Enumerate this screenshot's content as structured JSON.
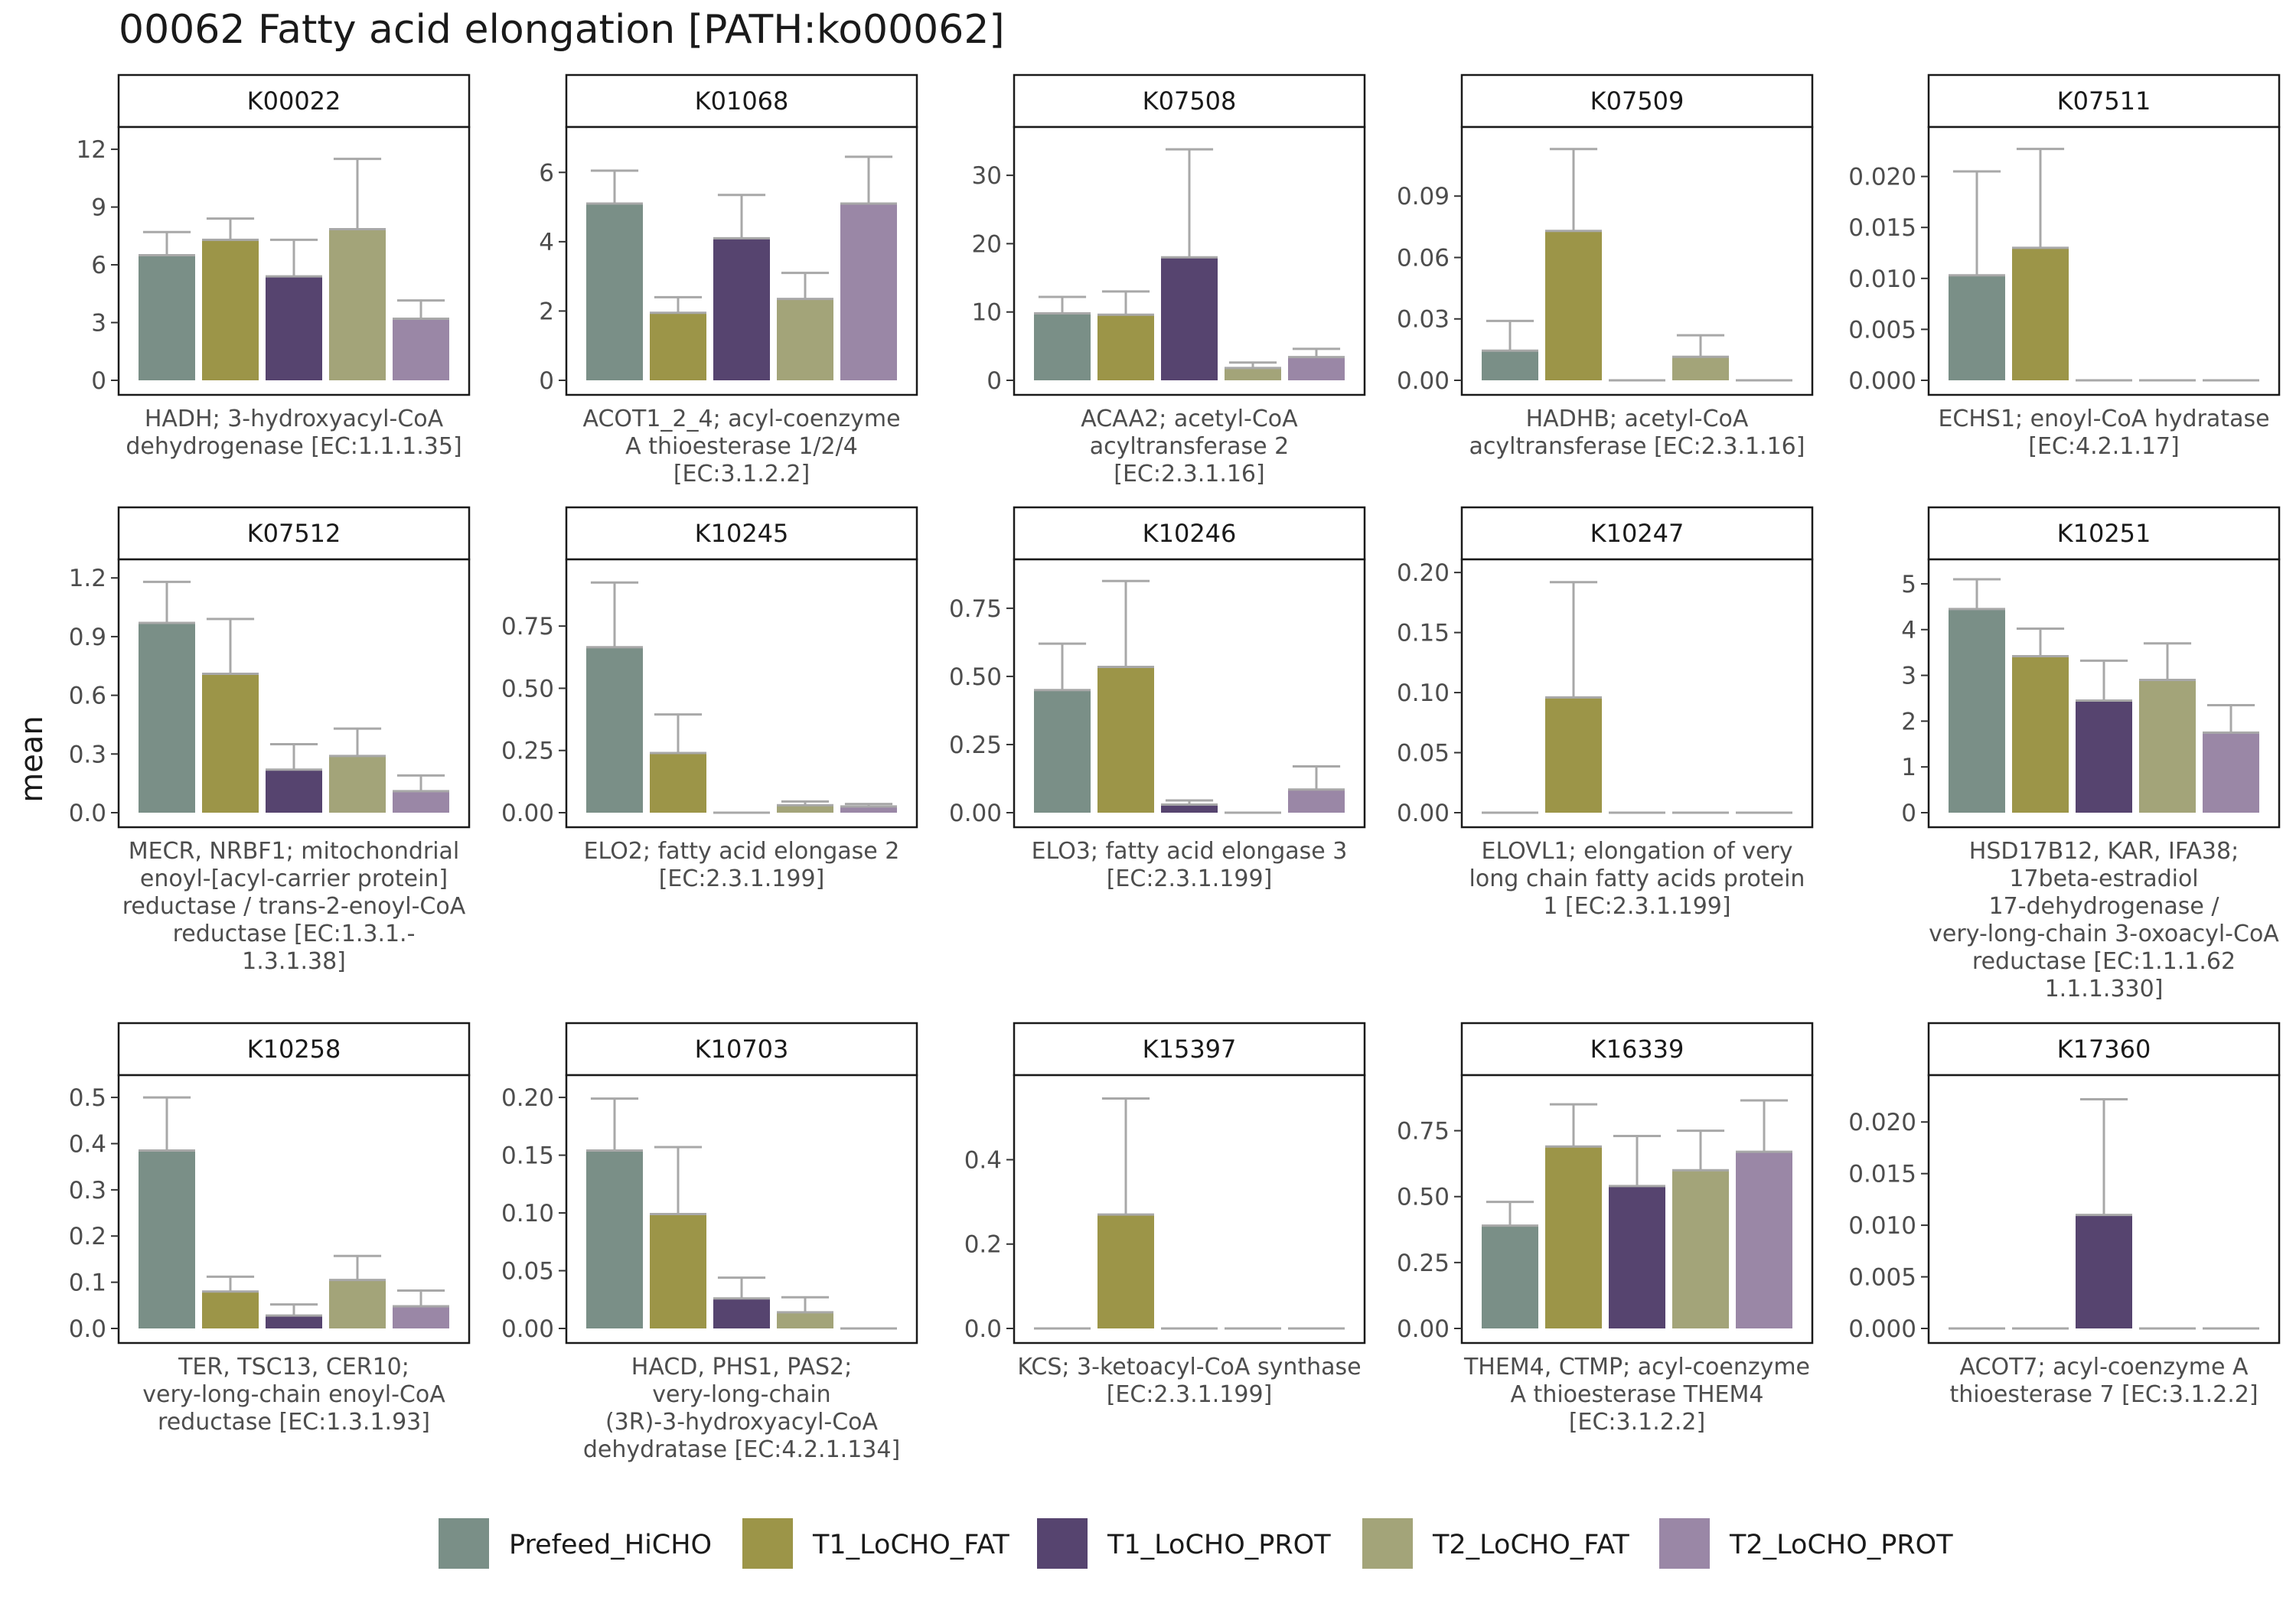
{
  "title": "00062 Fatty acid elongation [PATH:ko00062]",
  "ylabel": "mean",
  "legend": [
    {
      "name": "Prefeed_HiCHO",
      "color": "#7a8f87"
    },
    {
      "name": "T1_LoCHO_FAT",
      "color": "#9c9548"
    },
    {
      "name": "T1_LoCHO_PROT",
      "color": "#56446f"
    },
    {
      "name": "T2_LoCHO_FAT",
      "color": "#a3a479"
    },
    {
      "name": "T2_LoCHO_PROT",
      "color": "#9a87a6"
    }
  ],
  "error_bar_color": "#a8a8a8",
  "chart_data": [
    {
      "type": "bar",
      "title": "K00022",
      "caption": [
        "HADH; 3-hydroxyacyl-CoA",
        "dehydrogenase [EC:1.1.1.35]"
      ],
      "ylim": [
        0,
        12.6
      ],
      "yticks": [
        "0",
        "3",
        "6",
        "9",
        "12"
      ],
      "ytick_values": [
        0,
        3,
        6,
        9,
        12
      ],
      "series": [
        {
          "name": "Prefeed_HiCHO",
          "value": 6.5,
          "upper": 7.7
        },
        {
          "name": "T1_LoCHO_FAT",
          "value": 7.3,
          "upper": 8.4
        },
        {
          "name": "T1_LoCHO_PROT",
          "value": 5.4,
          "upper": 7.3
        },
        {
          "name": "T2_LoCHO_FAT",
          "value": 7.85,
          "upper": 11.5
        },
        {
          "name": "T2_LoCHO_PROT",
          "value": 3.2,
          "upper": 4.15
        }
      ]
    },
    {
      "type": "bar",
      "title": "K01068",
      "caption": [
        "ACOT1_2_4; acyl-coenzyme",
        "A thioesterase 1/2/4",
        "[EC:3.1.2.2]"
      ],
      "ylim": [
        0,
        7.0
      ],
      "yticks": [
        "0",
        "2",
        "4",
        "6"
      ],
      "ytick_values": [
        0,
        2,
        4,
        6
      ],
      "series": [
        {
          "name": "Prefeed_HiCHO",
          "value": 5.1,
          "upper": 6.05
        },
        {
          "name": "T1_LoCHO_FAT",
          "value": 1.95,
          "upper": 2.4
        },
        {
          "name": "T1_LoCHO_PROT",
          "value": 4.1,
          "upper": 5.35
        },
        {
          "name": "T2_LoCHO_FAT",
          "value": 2.35,
          "upper": 3.1
        },
        {
          "name": "T2_LoCHO_PROT",
          "value": 5.1,
          "upper": 6.45
        }
      ]
    },
    {
      "type": "bar",
      "title": "K07508",
      "caption": [
        "ACAA2; acetyl-CoA",
        "acyltransferase 2",
        "[EC:2.3.1.16]"
      ],
      "ylim": [
        0,
        35.5
      ],
      "yticks": [
        "0",
        "10",
        "20",
        "30"
      ],
      "ytick_values": [
        0,
        10,
        20,
        30
      ],
      "series": [
        {
          "name": "Prefeed_HiCHO",
          "value": 9.8,
          "upper": 12.2
        },
        {
          "name": "T1_LoCHO_FAT",
          "value": 9.6,
          "upper": 13.0
        },
        {
          "name": "T1_LoCHO_PROT",
          "value": 18.0,
          "upper": 33.8
        },
        {
          "name": "T2_LoCHO_FAT",
          "value": 1.8,
          "upper": 2.6
        },
        {
          "name": "T2_LoCHO_PROT",
          "value": 3.4,
          "upper": 4.6
        }
      ]
    },
    {
      "type": "bar",
      "title": "K07509",
      "caption": [
        "HADHB; acetyl-CoA",
        "acyltransferase [EC:2.3.1.16]"
      ],
      "ylim": [
        0,
        0.1185
      ],
      "yticks": [
        "0.00",
        "0.03",
        "0.06",
        "0.09"
      ],
      "ytick_values": [
        0,
        0.03,
        0.06,
        0.09
      ],
      "series": [
        {
          "name": "Prefeed_HiCHO",
          "value": 0.0145,
          "upper": 0.029
        },
        {
          "name": "T1_LoCHO_FAT",
          "value": 0.073,
          "upper": 0.113
        },
        {
          "name": "T1_LoCHO_PROT",
          "value": 0,
          "upper": 0
        },
        {
          "name": "T2_LoCHO_FAT",
          "value": 0.0115,
          "upper": 0.022
        },
        {
          "name": "T2_LoCHO_PROT",
          "value": 0,
          "upper": 0
        }
      ]
    },
    {
      "type": "bar",
      "title": "K07511",
      "caption": [
        "ECHS1; enoyl-CoA hydratase",
        "[EC:4.2.1.17]"
      ],
      "ylim": [
        0,
        0.0238
      ],
      "yticks": [
        "0.000",
        "0.005",
        "0.010",
        "0.015",
        "0.020"
      ],
      "ytick_values": [
        0,
        0.005,
        0.01,
        0.015,
        0.02
      ],
      "series": [
        {
          "name": "Prefeed_HiCHO",
          "value": 0.0103,
          "upper": 0.0205
        },
        {
          "name": "T1_LoCHO_FAT",
          "value": 0.013,
          "upper": 0.0227
        },
        {
          "name": "T1_LoCHO_PROT",
          "value": 0,
          "upper": 0
        },
        {
          "name": "T2_LoCHO_FAT",
          "value": 0,
          "upper": 0
        },
        {
          "name": "T2_LoCHO_PROT",
          "value": 0,
          "upper": 0
        }
      ]
    },
    {
      "type": "bar",
      "title": "K07512",
      "caption": [
        "MECR, NRBF1; mitochondrial",
        "enoyl-[acyl-carrier protein]",
        "reductase / trans-2-enoyl-CoA",
        "reductase [EC:1.3.1.-",
        "1.3.1.38]"
      ],
      "ylim": [
        0,
        1.24
      ],
      "yticks": [
        "0.0",
        "0.3",
        "0.6",
        "0.9",
        "1.2"
      ],
      "ytick_values": [
        0,
        0.3,
        0.6,
        0.9,
        1.2
      ],
      "series": [
        {
          "name": "Prefeed_HiCHO",
          "value": 0.97,
          "upper": 1.18
        },
        {
          "name": "T1_LoCHO_FAT",
          "value": 0.71,
          "upper": 0.99
        },
        {
          "name": "T1_LoCHO_PROT",
          "value": 0.22,
          "upper": 0.35
        },
        {
          "name": "T2_LoCHO_FAT",
          "value": 0.29,
          "upper": 0.43
        },
        {
          "name": "T2_LoCHO_PROT",
          "value": 0.11,
          "upper": 0.19
        }
      ]
    },
    {
      "type": "bar",
      "title": "K10245",
      "caption": [
        "ELO2; fatty acid elongase 2",
        "[EC:2.3.1.199]"
      ],
      "ylim": [
        0,
        0.975
      ],
      "yticks": [
        "0.00",
        "0.25",
        "0.50",
        "0.75"
      ],
      "ytick_values": [
        0,
        0.25,
        0.5,
        0.75
      ],
      "series": [
        {
          "name": "Prefeed_HiCHO",
          "value": 0.665,
          "upper": 0.925
        },
        {
          "name": "T1_LoCHO_FAT",
          "value": 0.24,
          "upper": 0.395
        },
        {
          "name": "T1_LoCHO_PROT",
          "value": 0,
          "upper": 0
        },
        {
          "name": "T2_LoCHO_FAT",
          "value": 0.03,
          "upper": 0.045
        },
        {
          "name": "T2_LoCHO_PROT",
          "value": 0.025,
          "upper": 0.035
        }
      ]
    },
    {
      "type": "bar",
      "title": "K10246",
      "caption": [
        "ELO3; fatty acid elongase 3",
        "[EC:2.3.1.199]"
      ],
      "ylim": [
        0,
        0.89
      ],
      "yticks": [
        "0.00",
        "0.25",
        "0.50",
        "0.75"
      ],
      "ytick_values": [
        0,
        0.25,
        0.5,
        0.75
      ],
      "series": [
        {
          "name": "Prefeed_HiCHO",
          "value": 0.45,
          "upper": 0.62
        },
        {
          "name": "T1_LoCHO_FAT",
          "value": 0.535,
          "upper": 0.85
        },
        {
          "name": "T1_LoCHO_PROT",
          "value": 0.03,
          "upper": 0.045
        },
        {
          "name": "T2_LoCHO_FAT",
          "value": 0,
          "upper": 0
        },
        {
          "name": "T2_LoCHO_PROT",
          "value": 0.085,
          "upper": 0.17
        }
      ]
    },
    {
      "type": "bar",
      "title": "K10247",
      "caption": [
        "ELOVL1; elongation of very",
        "long chain fatty acids protein",
        "1 [EC:2.3.1.199]"
      ],
      "ylim": [
        0,
        0.202
      ],
      "yticks": [
        "0.00",
        "0.05",
        "0.10",
        "0.15",
        "0.20"
      ],
      "ytick_values": [
        0,
        0.05,
        0.1,
        0.15,
        0.2
      ],
      "series": [
        {
          "name": "Prefeed_HiCHO",
          "value": 0,
          "upper": 0
        },
        {
          "name": "T1_LoCHO_FAT",
          "value": 0.096,
          "upper": 0.192
        },
        {
          "name": "T1_LoCHO_PROT",
          "value": 0,
          "upper": 0
        },
        {
          "name": "T2_LoCHO_FAT",
          "value": 0,
          "upper": 0
        },
        {
          "name": "T2_LoCHO_PROT",
          "value": 0,
          "upper": 0
        }
      ]
    },
    {
      "type": "bar",
      "title": "K10251",
      "caption": [
        "HSD17B12, KAR, IFA38;",
        "17beta-estradiol",
        "17-dehydrogenase /",
        "very-long-chain 3-oxoacyl-CoA",
        "reductase [EC:1.1.1.62",
        "1.1.1.330]"
      ],
      "ylim": [
        0,
        5.3
      ],
      "yticks": [
        "0",
        "1",
        "2",
        "3",
        "4",
        "5"
      ],
      "ytick_values": [
        0,
        1,
        2,
        3,
        4,
        5
      ],
      "series": [
        {
          "name": "Prefeed_HiCHO",
          "value": 4.45,
          "upper": 5.1
        },
        {
          "name": "T1_LoCHO_FAT",
          "value": 3.42,
          "upper": 4.02
        },
        {
          "name": "T1_LoCHO_PROT",
          "value": 2.45,
          "upper": 3.32
        },
        {
          "name": "T2_LoCHO_FAT",
          "value": 2.9,
          "upper": 3.7
        },
        {
          "name": "T2_LoCHO_PROT",
          "value": 1.75,
          "upper": 2.35
        }
      ]
    },
    {
      "type": "bar",
      "title": "K10258",
      "caption": [
        "TER, TSC13, CER10;",
        "very-long-chain enoyl-CoA",
        "reductase [EC:1.3.1.93]"
      ],
      "ylim": [
        0,
        0.525
      ],
      "yticks": [
        "0.0",
        "0.1",
        "0.2",
        "0.3",
        "0.4",
        "0.5"
      ],
      "ytick_values": [
        0,
        0.1,
        0.2,
        0.3,
        0.4,
        0.5
      ],
      "series": [
        {
          "name": "Prefeed_HiCHO",
          "value": 0.385,
          "upper": 0.5
        },
        {
          "name": "T1_LoCHO_FAT",
          "value": 0.08,
          "upper": 0.112
        },
        {
          "name": "T1_LoCHO_PROT",
          "value": 0.028,
          "upper": 0.052
        },
        {
          "name": "T2_LoCHO_FAT",
          "value": 0.105,
          "upper": 0.157
        },
        {
          "name": "T2_LoCHO_PROT",
          "value": 0.048,
          "upper": 0.082
        }
      ]
    },
    {
      "type": "bar",
      "title": "K10703",
      "caption": [
        "HACD, PHS1, PAS2;",
        "very-long-chain",
        "(3R)-3-hydroxyacyl-CoA",
        "dehydratase [EC:4.2.1.134]"
      ],
      "ylim": [
        0,
        0.21
      ],
      "yticks": [
        "0.00",
        "0.05",
        "0.10",
        "0.15",
        "0.20"
      ],
      "ytick_values": [
        0,
        0.05,
        0.1,
        0.15,
        0.2
      ],
      "series": [
        {
          "name": "Prefeed_HiCHO",
          "value": 0.154,
          "upper": 0.199
        },
        {
          "name": "T1_LoCHO_FAT",
          "value": 0.099,
          "upper": 0.157
        },
        {
          "name": "T1_LoCHO_PROT",
          "value": 0.026,
          "upper": 0.044
        },
        {
          "name": "T2_LoCHO_FAT",
          "value": 0.014,
          "upper": 0.027
        },
        {
          "name": "T2_LoCHO_PROT",
          "value": 0,
          "upper": 0
        }
      ]
    },
    {
      "type": "bar",
      "title": "K15397",
      "caption": [
        "KCS; 3-ketoacyl-CoA synthase",
        "[EC:2.3.1.199]"
      ],
      "ylim": [
        0,
        0.575
      ],
      "yticks": [
        "0.0",
        "0.2",
        "0.4"
      ],
      "ytick_values": [
        0,
        0.2,
        0.4
      ],
      "series": [
        {
          "name": "Prefeed_HiCHO",
          "value": 0,
          "upper": 0
        },
        {
          "name": "T1_LoCHO_FAT",
          "value": 0.27,
          "upper": 0.545
        },
        {
          "name": "T1_LoCHO_PROT",
          "value": 0,
          "upper": 0
        },
        {
          "name": "T2_LoCHO_FAT",
          "value": 0,
          "upper": 0
        },
        {
          "name": "T2_LoCHO_PROT",
          "value": 0,
          "upper": 0
        }
      ]
    },
    {
      "type": "bar",
      "title": "K16339",
      "caption": [
        "THEM4, CTMP; acyl-coenzyme",
        "A thioesterase THEM4",
        "[EC:3.1.2.2]"
      ],
      "ylim": [
        0,
        0.92
      ],
      "yticks": [
        "0.00",
        "0.25",
        "0.50",
        "0.75"
      ],
      "ytick_values": [
        0,
        0.25,
        0.5,
        0.75
      ],
      "series": [
        {
          "name": "Prefeed_HiCHO",
          "value": 0.39,
          "upper": 0.48
        },
        {
          "name": "T1_LoCHO_FAT",
          "value": 0.69,
          "upper": 0.85
        },
        {
          "name": "T1_LoCHO_PROT",
          "value": 0.54,
          "upper": 0.73
        },
        {
          "name": "T2_LoCHO_FAT",
          "value": 0.6,
          "upper": 0.75
        },
        {
          "name": "T2_LoCHO_PROT",
          "value": 0.67,
          "upper": 0.865
        }
      ]
    },
    {
      "type": "bar",
      "title": "K17360",
      "caption": [
        "ACOT7; acyl-coenzyme A",
        "thioesterase 7 [EC:3.1.2.2]"
      ],
      "ylim": [
        0,
        0.0235
      ],
      "yticks": [
        "0.000",
        "0.005",
        "0.010",
        "0.015",
        "0.020"
      ],
      "ytick_values": [
        0,
        0.005,
        0.01,
        0.015,
        0.02
      ],
      "series": [
        {
          "name": "Prefeed_HiCHO",
          "value": 0,
          "upper": 0
        },
        {
          "name": "T1_LoCHO_FAT",
          "value": 0,
          "upper": 0
        },
        {
          "name": "T1_LoCHO_PROT",
          "value": 0.011,
          "upper": 0.0222
        },
        {
          "name": "T2_LoCHO_FAT",
          "value": 0,
          "upper": 0
        },
        {
          "name": "T2_LoCHO_PROT",
          "value": 0,
          "upper": 0
        }
      ]
    }
  ]
}
